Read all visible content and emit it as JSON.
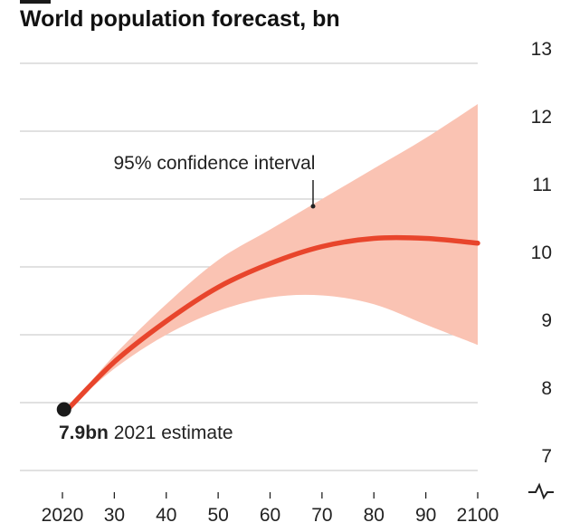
{
  "chart_data": {
    "type": "line",
    "title": "World population forecast, bn",
    "x_tick_labels": [
      "2020",
      "30",
      "40",
      "50",
      "60",
      "70",
      "80",
      "90",
      "2100"
    ],
    "x_ticks": [
      2020,
      2030,
      2040,
      2050,
      2060,
      2070,
      2080,
      2090,
      2100
    ],
    "y_ticks": [
      7,
      8,
      9,
      10,
      11,
      12,
      13
    ],
    "xlim": [
      2020,
      2100
    ],
    "ylim": [
      7,
      13
    ],
    "y_axis_side": "right",
    "y_axis_break": true,
    "grid": true,
    "series": [
      {
        "kind": "median",
        "x": [
          2021,
          2030,
          2040,
          2050,
          2060,
          2070,
          2080,
          2090,
          2100
        ],
        "values": [
          7.9,
          8.6,
          9.2,
          9.7,
          10.05,
          10.3,
          10.42,
          10.42,
          10.35
        ],
        "color": "#e8452c"
      },
      {
        "kind": "interval",
        "name": "95% confidence interval",
        "x": [
          2021,
          2030,
          2040,
          2050,
          2060,
          2070,
          2080,
          2090,
          2100
        ],
        "lower": [
          7.9,
          8.5,
          9.0,
          9.35,
          9.55,
          9.58,
          9.45,
          9.15,
          8.85
        ],
        "upper": [
          7.9,
          8.7,
          9.45,
          10.1,
          10.55,
          11.0,
          11.45,
          11.9,
          12.4
        ],
        "color": "#fac3b3"
      }
    ],
    "annotations": {
      "confidence": "95% confidence interval",
      "estimate_value": "7.9bn",
      "estimate_text": " 2021 estimate"
    }
  }
}
